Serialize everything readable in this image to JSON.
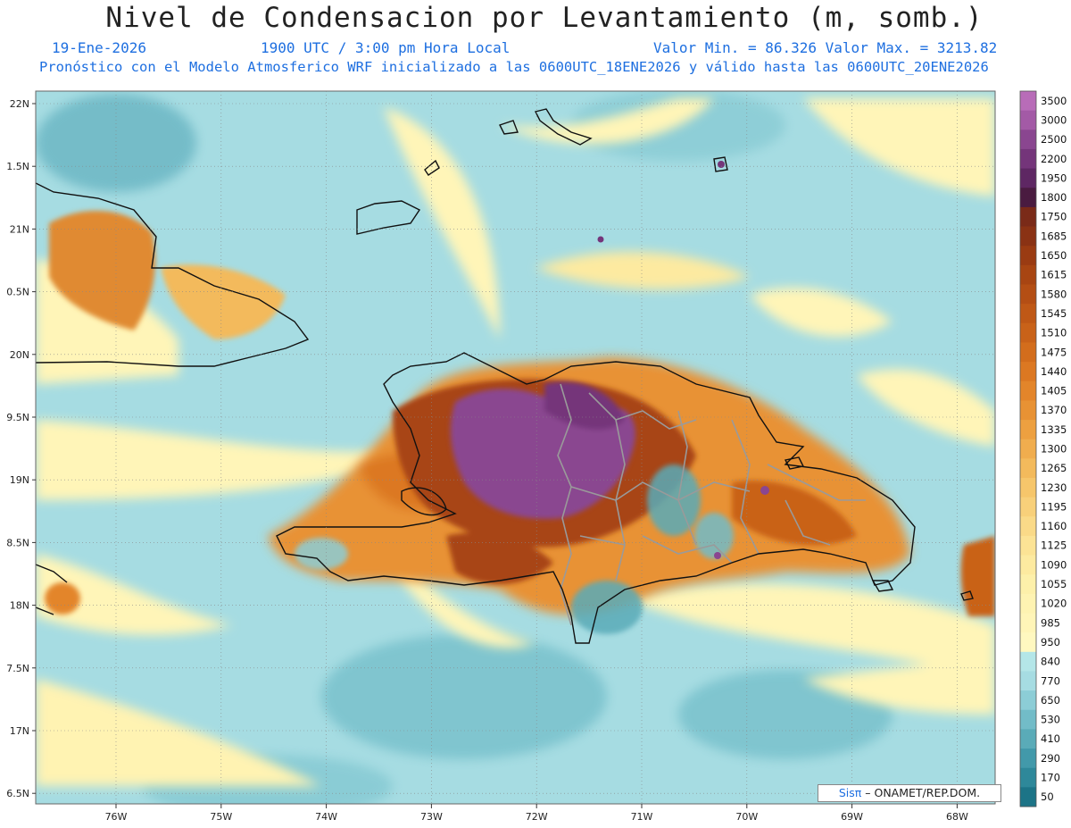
{
  "title": "Nivel de Condensacion por Levantamiento (m, somb.)",
  "header": {
    "date": "19-Ene-2026",
    "time": "1900 UTC / 3:00 pm Hora Local",
    "minmax": "Valor Min. = 86.326   Valor Max. = 3213.82",
    "model": "Pronóstico con el Modelo Atmosferico WRF inicializado a las 0600UTC_18ENE2026 y válido hasta las  0600UTC_20ENE2026"
  },
  "axes": {
    "lat_labels": [
      "22N",
      "1.5N",
      "21N",
      "0.5N",
      "20N",
      "9.5N",
      "19N",
      "8.5N",
      "18N",
      "7.5N",
      "17N",
      "6.5N"
    ],
    "lon_labels": [
      "76W",
      "75W",
      "74W",
      "73W",
      "72W",
      "71W",
      "70W",
      "69W",
      "68W"
    ]
  },
  "colorbar": {
    "levels": [
      "3500",
      "3000",
      "2500",
      "2200",
      "1950",
      "1800",
      "1750",
      "1685",
      "1650",
      "1615",
      "1580",
      "1545",
      "1510",
      "1475",
      "1440",
      "1405",
      "1370",
      "1335",
      "1300",
      "1265",
      "1230",
      "1195",
      "1160",
      "1125",
      "1090",
      "1055",
      "1020",
      "985",
      "950",
      "840",
      "770",
      "650",
      "530",
      "410",
      "290",
      "170",
      "50"
    ],
    "colors": [
      "#b86cb8",
      "#a35aa6",
      "#8a4690",
      "#74357a",
      "#5e2763",
      "#4a1b40",
      "#7a2a18",
      "#8a3214",
      "#9a3b12",
      "#a84512",
      "#b44e14",
      "#bf5816",
      "#c96219",
      "#d36d1c",
      "#dc7822",
      "#e3852a",
      "#e89234",
      "#eda040",
      "#f0ad4e",
      "#f3ba5c",
      "#f6c66b",
      "#f8d07a",
      "#fada88",
      "#fce395",
      "#fdeaa0",
      "#fdf0aa",
      "#fef3b2",
      "#fff5b8",
      "#fff8c0",
      "#b4e6e8",
      "#a6dce2",
      "#8ccdd6",
      "#72bcc8",
      "#5aabb8",
      "#4299aa",
      "#2e889a",
      "#1c7487"
    ]
  },
  "credit": {
    "sis": "Sisπ",
    "org": " – ONAMET/REP.DOM."
  },
  "colors": {
    "land_outline": "#111111",
    "province_outline": "#9a9a9a",
    "background_low": "#a6dce2",
    "background_mid": "#fff5b8"
  }
}
